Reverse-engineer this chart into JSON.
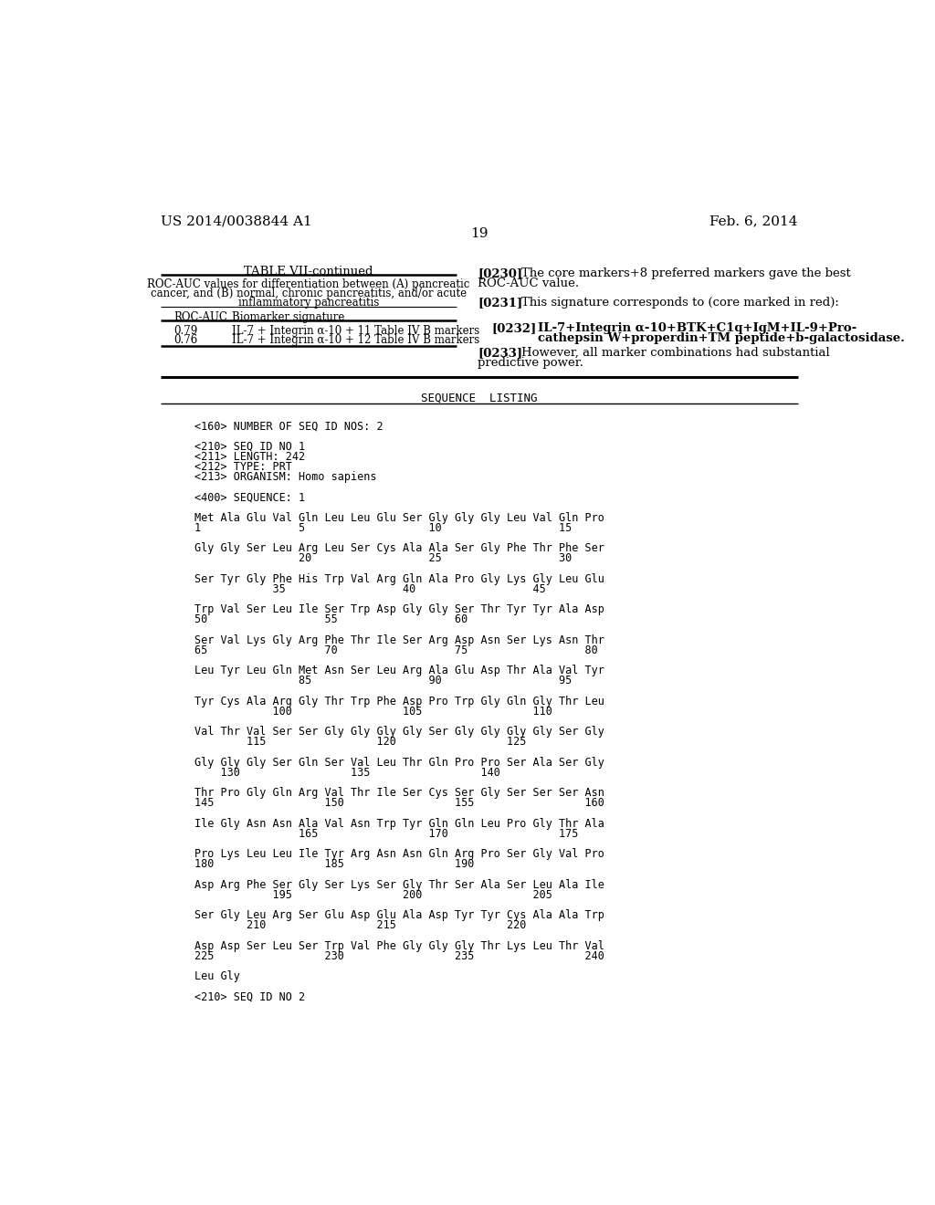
{
  "background_color": "#ffffff",
  "header_left": "US 2014/0038844 A1",
  "header_right": "Feb. 6, 2014",
  "page_number": "19",
  "table_title": "TABLE VII-continued",
  "table_subtitle_lines": [
    "ROC-AUC values for differentiation between (A) pancreatic",
    "cancer, and (B) normal, chronic pancreatitis, and/or acute",
    "inflammatory pancreatitis"
  ],
  "table_col1_header": "ROC-AUC",
  "table_col2_header": "Biomarker signature",
  "table_rows": [
    [
      "0.79",
      "IL-7 + Integrin α-10 + 11 Table IV B markers"
    ],
    [
      "0.76",
      "IL-7 + Integrin α-10 + 12 Table IV B markers"
    ]
  ],
  "para_0_tag": "[0230]",
  "para_0_line1": "The core markers+8 preferred markers gave the best",
  "para_0_line2": "ROC-AUC value.",
  "para_1_tag": "[0231]",
  "para_1_text": "This signature corresponds to (core marked in red):",
  "para_2_tag": "[0232]",
  "para_2_line1": "IL-7+Integrin α-10+BTK+C1q+IgM+IL-9+Pro-",
  "para_2_line2": "cathepsin W+properdin+TM peptide+b-galactosidase.",
  "para_3_tag": "[0233]",
  "para_3_line1": "However, all marker combinations had substantial",
  "para_3_line2": "predictive power.",
  "seq_section_title": "SEQUENCE  LISTING",
  "seq_lines": [
    "<160> NUMBER OF SEQ ID NOS: 2",
    "",
    "<210> SEQ ID NO 1",
    "<211> LENGTH: 242",
    "<212> TYPE: PRT",
    "<213> ORGANISM: Homo sapiens",
    "",
    "<400> SEQUENCE: 1",
    "",
    "Met Ala Glu Val Gln Leu Leu Glu Ser Gly Gly Gly Leu Val Gln Pro",
    "1               5                   10                  15",
    "",
    "Gly Gly Ser Leu Arg Leu Ser Cys Ala Ala Ser Gly Phe Thr Phe Ser",
    "                20                  25                  30",
    "",
    "Ser Tyr Gly Phe His Trp Val Arg Gln Ala Pro Gly Lys Gly Leu Glu",
    "            35                  40                  45",
    "",
    "Trp Val Ser Leu Ile Ser Trp Asp Gly Gly Ser Thr Tyr Tyr Ala Asp",
    "50                  55                  60",
    "",
    "Ser Val Lys Gly Arg Phe Thr Ile Ser Arg Asp Asn Ser Lys Asn Thr",
    "65                  70                  75                  80",
    "",
    "Leu Tyr Leu Gln Met Asn Ser Leu Arg Ala Glu Asp Thr Ala Val Tyr",
    "                85                  90                  95",
    "",
    "Tyr Cys Ala Arg Gly Thr Trp Phe Asp Pro Trp Gly Gln Gly Thr Leu",
    "            100                 105                 110",
    "",
    "Val Thr Val Ser Ser Gly Gly Gly Gly Ser Gly Gly Gly Gly Ser Gly",
    "        115                 120                 125",
    "",
    "Gly Gly Gly Ser Gln Ser Val Leu Thr Gln Pro Pro Ser Ala Ser Gly",
    "    130                 135                 140",
    "",
    "Thr Pro Gly Gln Arg Val Thr Ile Ser Cys Ser Gly Ser Ser Ser Asn",
    "145                 150                 155                 160",
    "",
    "Ile Gly Asn Asn Ala Val Asn Trp Tyr Gln Gln Leu Pro Gly Thr Ala",
    "                165                 170                 175",
    "",
    "Pro Lys Leu Leu Ile Tyr Arg Asn Asn Gln Arg Pro Ser Gly Val Pro",
    "180                 185                 190",
    "",
    "Asp Arg Phe Ser Gly Ser Lys Ser Gly Thr Ser Ala Ser Leu Ala Ile",
    "            195                 200                 205",
    "",
    "Ser Gly Leu Arg Ser Glu Asp Glu Ala Asp Tyr Tyr Cys Ala Ala Trp",
    "        210                 215                 220",
    "",
    "Asp Asp Ser Leu Ser Trp Val Phe Gly Gly Gly Thr Lys Leu Thr Val",
    "225                 230                 235                 240",
    "",
    "Leu Gly",
    "",
    "<210> SEQ ID NO 2"
  ]
}
